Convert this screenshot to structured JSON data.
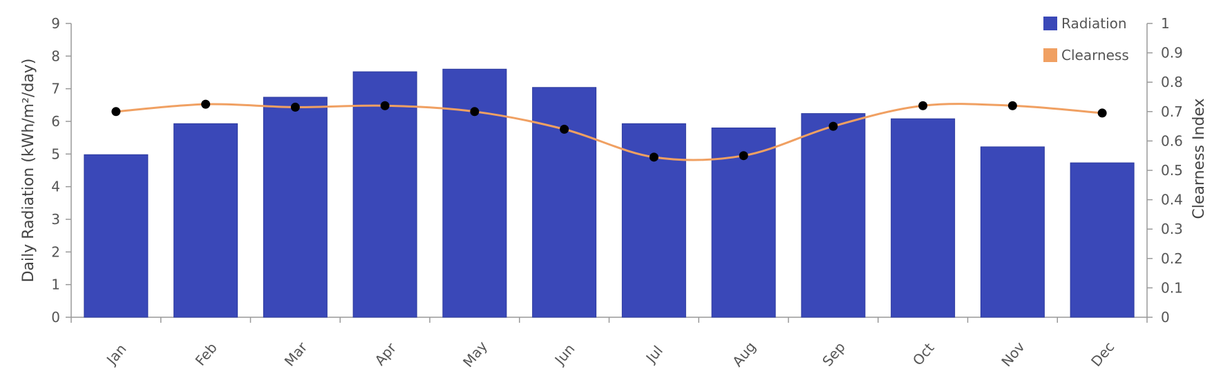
{
  "chart_data": {
    "type": "bar",
    "categories": [
      "Jan",
      "Feb",
      "Mar",
      "Apr",
      "May",
      "Jun",
      "Jul",
      "Aug",
      "Sep",
      "Oct",
      "Nov",
      "Dec"
    ],
    "series": [
      {
        "name": "Radiation",
        "type": "bar",
        "axis": "left",
        "color": "#3a48b8",
        "values": [
          4.98,
          5.93,
          6.74,
          7.52,
          7.6,
          7.04,
          5.93,
          5.8,
          6.24,
          6.08,
          5.22,
          4.73
        ]
      },
      {
        "name": "Clearness",
        "type": "line",
        "axis": "right",
        "color": "#f0a062",
        "marker_color": "#000000",
        "values": [
          0.7,
          0.725,
          0.715,
          0.72,
          0.7,
          0.64,
          0.545,
          0.55,
          0.65,
          0.72,
          0.72,
          0.695
        ]
      }
    ],
    "ylabel": "Daily Radiation (kWh/m²/day)",
    "ylabel_right": "Clearness Index",
    "ylim": [
      0,
      9
    ],
    "ylim_right": [
      0,
      1
    ],
    "yticks": [
      "0",
      "1",
      "2",
      "3",
      "4",
      "5",
      "6",
      "7",
      "8",
      "9"
    ],
    "yticks_right": [
      "0",
      "0.1",
      "0.2",
      "0.3",
      "0.4",
      "0.5",
      "0.6",
      "0.7",
      "0.8",
      "0.9",
      "1"
    ],
    "legend": [
      {
        "label": "Radiation",
        "color": "#3a48b8"
      },
      {
        "label": "Clearness",
        "color": "#f0a062"
      }
    ],
    "legend_position": "top-right",
    "grid": false
  }
}
